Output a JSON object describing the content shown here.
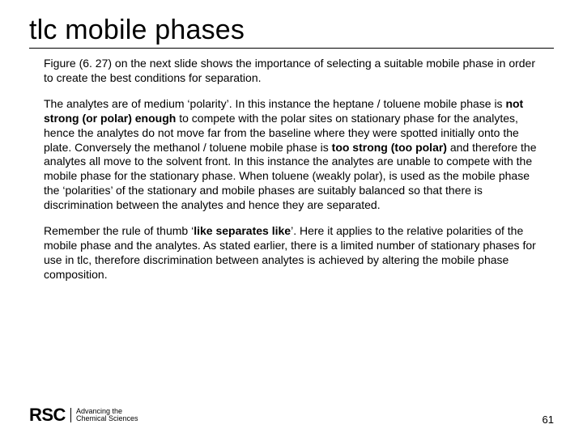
{
  "title": "tlc mobile phases",
  "para1_a": "Figure (6. 27) on the next slide shows the importance of selecting a suitable mobile phase in order to create the best conditions for separation.",
  "p2_a": "The analytes are of medium ‘polarity’.  In this instance the heptane / toluene mobile phase is ",
  "p2_b": "not strong (or polar) enough",
  "p2_c": " to compete with the polar sites on stationary phase for the analytes, hence the analytes do not move far from the baseline where they were spotted initially onto the plate. Conversely the methanol / toluene mobile phase is ",
  "p2_d": "too strong (too polar)",
  "p2_e": " and therefore the analytes all move to the solvent front. In this instance the analytes are unable to compete with the mobile phase for the stationary phase.  When toluene (weakly polar), is used as the mobile phase the ‘polarities’ of the stationary and mobile phases are suitably balanced so that there is discrimination between the analytes and hence they are separated.",
  "p3_a": "Remember the rule of thumb ‘",
  "p3_b": "like separates like",
  "p3_c": "’.   Here it applies to the relative polarities of the mobile phase and the analytes.  As stated earlier, there is a limited number of stationary phases for use in tlc, therefore discrimination between analytes is achieved by altering the mobile phase composition.",
  "logo_mark": "RSC",
  "logo_line1": "Advancing the",
  "logo_line2": "Chemical Sciences",
  "page_number": "61",
  "colors": {
    "text": "#000000",
    "bg": "#ffffff"
  },
  "fontsizes": {
    "title": 34,
    "body": 14,
    "pagenum": 13,
    "logo_mark": 22,
    "logo_tag": 9
  }
}
